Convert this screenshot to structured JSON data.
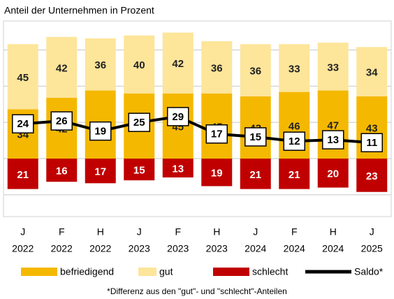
{
  "chart_data": {
    "type": "stacked-bar-line",
    "title": "Anteil der Unternehmen in Prozent",
    "footnote": "*Differenz aus den \"gut\"- und \"schlecht\"-Anteilen",
    "categories": [
      [
        "J",
        "2022"
      ],
      [
        "F",
        "2022"
      ],
      [
        "H",
        "2022"
      ],
      [
        "J",
        "2023"
      ],
      [
        "F",
        "2023"
      ],
      [
        "H",
        "2023"
      ],
      [
        "J",
        "2024"
      ],
      [
        "F",
        "2024"
      ],
      [
        "H",
        "2024"
      ],
      [
        "J",
        "2025"
      ]
    ],
    "ylim": [
      -40,
      95
    ],
    "yticks": [
      -25,
      0,
      25,
      50,
      75
    ],
    "grid": true,
    "series": [
      {
        "name": "befriedigend",
        "color": "#f5b800",
        "stack": "up",
        "values": [
          34,
          42,
          47,
          45,
          45,
          45,
          43,
          46,
          47,
          43
        ]
      },
      {
        "name": "gut",
        "color": "#fde59a",
        "stack": "up",
        "values": [
          45,
          42,
          36,
          40,
          42,
          36,
          36,
          33,
          33,
          34
        ]
      },
      {
        "name": "schlecht",
        "color": "#c00000",
        "stack": "down",
        "values": [
          21,
          16,
          17,
          15,
          13,
          19,
          21,
          21,
          20,
          23
        ]
      },
      {
        "name": "Saldo*",
        "color": "#000000",
        "kind": "line",
        "values": [
          24,
          26,
          19,
          25,
          29,
          17,
          15,
          12,
          13,
          11
        ]
      }
    ]
  }
}
